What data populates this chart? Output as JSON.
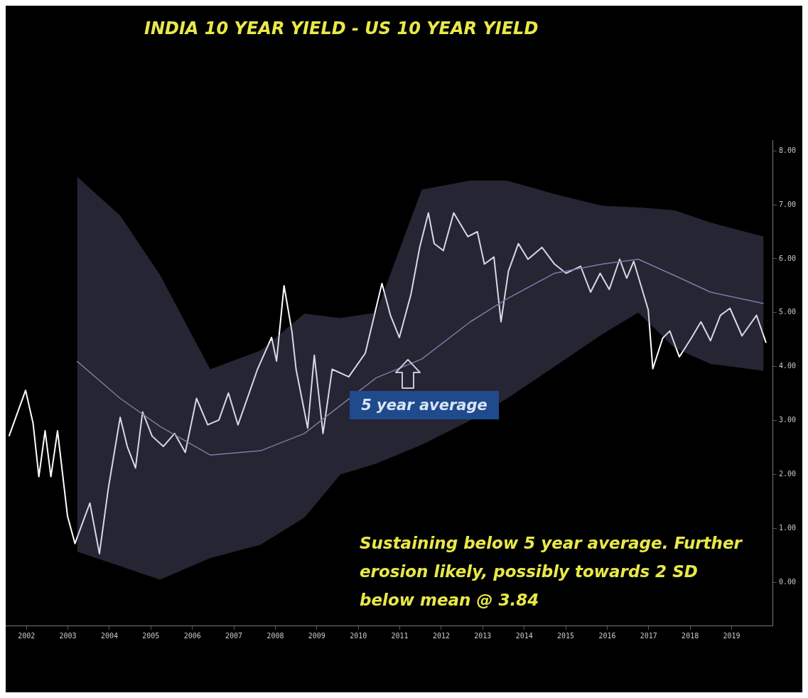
{
  "chart_data": {
    "type": "line",
    "title": "INDIA 10 YEAR YIELD - US 10 YEAR YIELD",
    "xlim": [
      2001.5,
      2020.0
    ],
    "xticks": [
      2002,
      2003,
      2004,
      2005,
      2006,
      2007,
      2008,
      2009,
      2010,
      2011,
      2012,
      2013,
      2014,
      2015,
      2016,
      2017,
      2018,
      2019
    ],
    "ylim": [
      -0.8,
      8.2
    ],
    "yticks": [
      {
        "value": 0,
        "label": "0.00"
      },
      {
        "value": 1,
        "label": "1.00"
      },
      {
        "value": 2,
        "label": "2.00"
      },
      {
        "value": 3,
        "label": "3.00"
      },
      {
        "value": 4,
        "label": "4.00"
      },
      {
        "value": 5,
        "label": "5.00"
      },
      {
        "value": 6,
        "label": "6.00"
      },
      {
        "value": 7,
        "label": "7.00"
      },
      {
        "value": 8,
        "label": "8.00"
      }
    ],
    "marker": "none",
    "legend": false,
    "series": [
      {
        "color": "#7c7aa8",
        "x": [
          2003.22,
          2004.26,
          2005.22,
          2006.43,
          2007.65,
          2008.7,
          2009.57,
          2010.43,
          2011.53,
          2012.7,
          2013.57,
          2014.73,
          2015.88,
          2016.75,
          2017.62,
          2018.49,
          2019.77
        ],
        "values": [
          4.1,
          3.41,
          2.89,
          2.36,
          2.44,
          2.76,
          3.28,
          3.79,
          4.14,
          4.83,
          5.25,
          5.73,
          5.9,
          5.99,
          5.69,
          5.38,
          5.17
        ],
        "lower": [
          0.57,
          0.3,
          0.05,
          0.45,
          0.7,
          1.2,
          2.0,
          2.2,
          2.55,
          3.0,
          3.4,
          4.0,
          4.6,
          5.0,
          4.35,
          4.05,
          3.92
        ],
        "upper": [
          7.52,
          6.8,
          5.7,
          3.95,
          4.3,
          4.98,
          4.9,
          5.0,
          7.28,
          7.45,
          7.45,
          7.2,
          6.98,
          6.95,
          6.9,
          6.67,
          6.41
        ]
      },
      {
        "color": "#ffffff",
        "x": [
          2001.58,
          2001.98,
          2002.16,
          2002.3,
          2002.45,
          2002.59,
          2002.75,
          2002.99,
          2003.17,
          2003.36,
          2003.53,
          2003.76,
          2003.97,
          2004.26,
          2004.43,
          2004.63,
          2004.8,
          2005.03,
          2005.3,
          2005.57,
          2005.83,
          2006.1,
          2006.37,
          2006.64,
          2006.87,
          2007.1,
          2007.37,
          2007.57,
          2007.91,
          2008.03,
          2008.21,
          2008.4,
          2008.5,
          2008.78,
          2008.94,
          2009.15,
          2009.37,
          2009.77,
          2010.17,
          2010.57,
          2010.78,
          2010.99,
          2011.27,
          2011.48,
          2011.69,
          2011.83,
          2012.05,
          2012.3,
          2012.64,
          2012.87,
          2013.04,
          2013.27,
          2013.44,
          2013.62,
          2013.86,
          2014.09,
          2014.43,
          2014.73,
          2015.01,
          2015.36,
          2015.6,
          2015.83,
          2016.05,
          2016.3,
          2016.47,
          2016.64,
          2016.99,
          2017.1,
          2017.34,
          2017.51,
          2017.74,
          2018.03,
          2018.26,
          2018.49,
          2018.73,
          2018.96,
          2019.25,
          2019.6,
          2019.83
        ],
        "values": [
          2.71,
          3.56,
          2.95,
          1.96,
          2.81,
          1.96,
          2.81,
          1.23,
          0.72,
          1.12,
          1.47,
          0.53,
          1.72,
          3.06,
          2.52,
          2.12,
          3.16,
          2.71,
          2.52,
          2.76,
          2.41,
          3.41,
          2.92,
          3.01,
          3.51,
          2.92,
          3.51,
          3.95,
          4.54,
          4.1,
          5.5,
          4.65,
          3.95,
          2.86,
          4.21,
          2.76,
          3.95,
          3.81,
          4.25,
          5.54,
          4.94,
          4.54,
          5.34,
          6.21,
          6.85,
          6.28,
          6.15,
          6.85,
          6.41,
          6.5,
          5.9,
          6.03,
          4.83,
          5.77,
          6.28,
          5.99,
          6.21,
          5.9,
          5.73,
          5.86,
          5.38,
          5.73,
          5.43,
          5.99,
          5.64,
          5.95,
          5.05,
          3.96,
          4.53,
          4.66,
          4.18,
          4.53,
          4.83,
          4.48,
          4.95,
          5.08,
          4.57,
          4.95,
          4.44
        ]
      }
    ],
    "annotations": [
      "5 year average",
      "Sustaining below 5 year average. Further erosion likely, possibly towards 2 SD below mean @ 3.84"
    ]
  }
}
